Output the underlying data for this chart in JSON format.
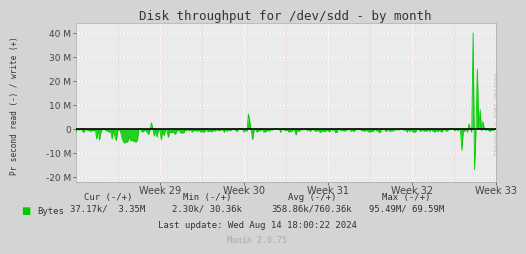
{
  "title": "Disk throughput for /dev/sdd - by month",
  "ylabel": "Pr second read (-) / write (+)",
  "bg_color": "#d4d4d4",
  "plot_bg_color": "#ebebeb",
  "grid_major_color": "#ffffff",
  "grid_minor_color": "#ffaaaa",
  "line_color": "#00cc00",
  "zero_line_color": "#000000",
  "ylim": [
    -22000000,
    44000000
  ],
  "yticks": [
    -20000000,
    -10000000,
    0,
    10000000,
    20000000,
    30000000,
    40000000
  ],
  "week_labels": [
    "Week 29",
    "Week 30",
    "Week 31",
    "Week 32",
    "Week 33"
  ],
  "week_positions": [
    1,
    2,
    3,
    4,
    5
  ],
  "footer_text": "Last update: Wed Aug 14 18:00:22 2024",
  "munin_text": "Munin 2.0.75",
  "watermark": "RRDTOOL / TOBI OETIKER",
  "legend_label": "Bytes",
  "cur_neg": "37.17k",
  "cur_pos": "3.35M",
  "min_neg": "2.30k",
  "min_pos": "30.36k",
  "avg_neg": "358.86k",
  "avg_pos": "760.36k",
  "max_neg": "95.49M",
  "max_pos": "69.59M",
  "num_points": 300
}
